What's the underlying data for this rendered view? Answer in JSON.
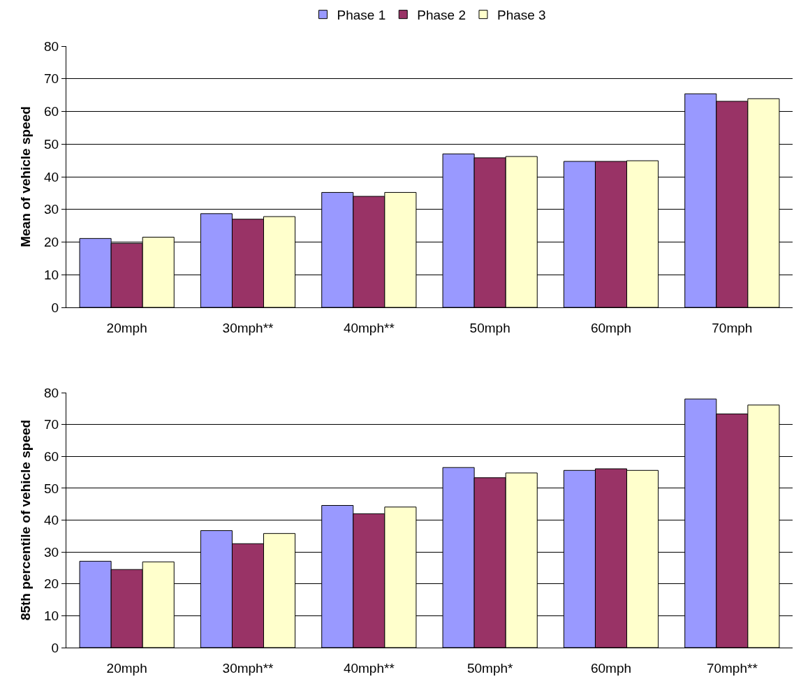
{
  "chart_data": [
    {
      "type": "bar",
      "ylabel": "Mean of vehicle speed",
      "categories": [
        "20mph",
        "30mph**",
        "40mph**",
        "50mph",
        "60mph",
        "70mph"
      ],
      "series": [
        {
          "name": "Phase 1",
          "color": "#9999ff",
          "values": [
            21.1,
            28.7,
            35.2,
            47.0,
            44.7,
            65.4
          ]
        },
        {
          "name": "Phase 2",
          "color": "#993366",
          "values": [
            19.6,
            27.0,
            34.0,
            45.8,
            44.7,
            63.1
          ]
        },
        {
          "name": "Phase 3",
          "color": "#ffffcc",
          "values": [
            21.5,
            27.8,
            35.2,
            46.2,
            44.9,
            63.9
          ]
        }
      ],
      "ylim": [
        0,
        80
      ],
      "yticks": [
        0,
        10,
        20,
        30,
        40,
        50,
        60,
        70,
        80
      ],
      "grid": "y",
      "legend": "top"
    },
    {
      "type": "bar",
      "ylabel": "85th percentile of vehicle speed",
      "categories": [
        "20mph",
        "30mph**",
        "40mph**",
        "50mph*",
        "60mph",
        "70mph**"
      ],
      "series": [
        {
          "color": "#9999ff",
          "values": [
            27.1,
            36.7,
            44.6,
            56.5,
            55.6,
            78.0
          ]
        },
        {
          "color": "#993366",
          "values": [
            24.5,
            32.6,
            42.0,
            53.3,
            56.1,
            73.3
          ]
        },
        {
          "color": "#ffffcc",
          "values": [
            26.9,
            35.8,
            44.1,
            54.8,
            55.6,
            76.1
          ]
        }
      ],
      "ylim": [
        0,
        80
      ],
      "yticks": [
        0,
        10,
        20,
        30,
        40,
        50,
        60,
        70,
        80
      ],
      "grid": "y"
    }
  ]
}
